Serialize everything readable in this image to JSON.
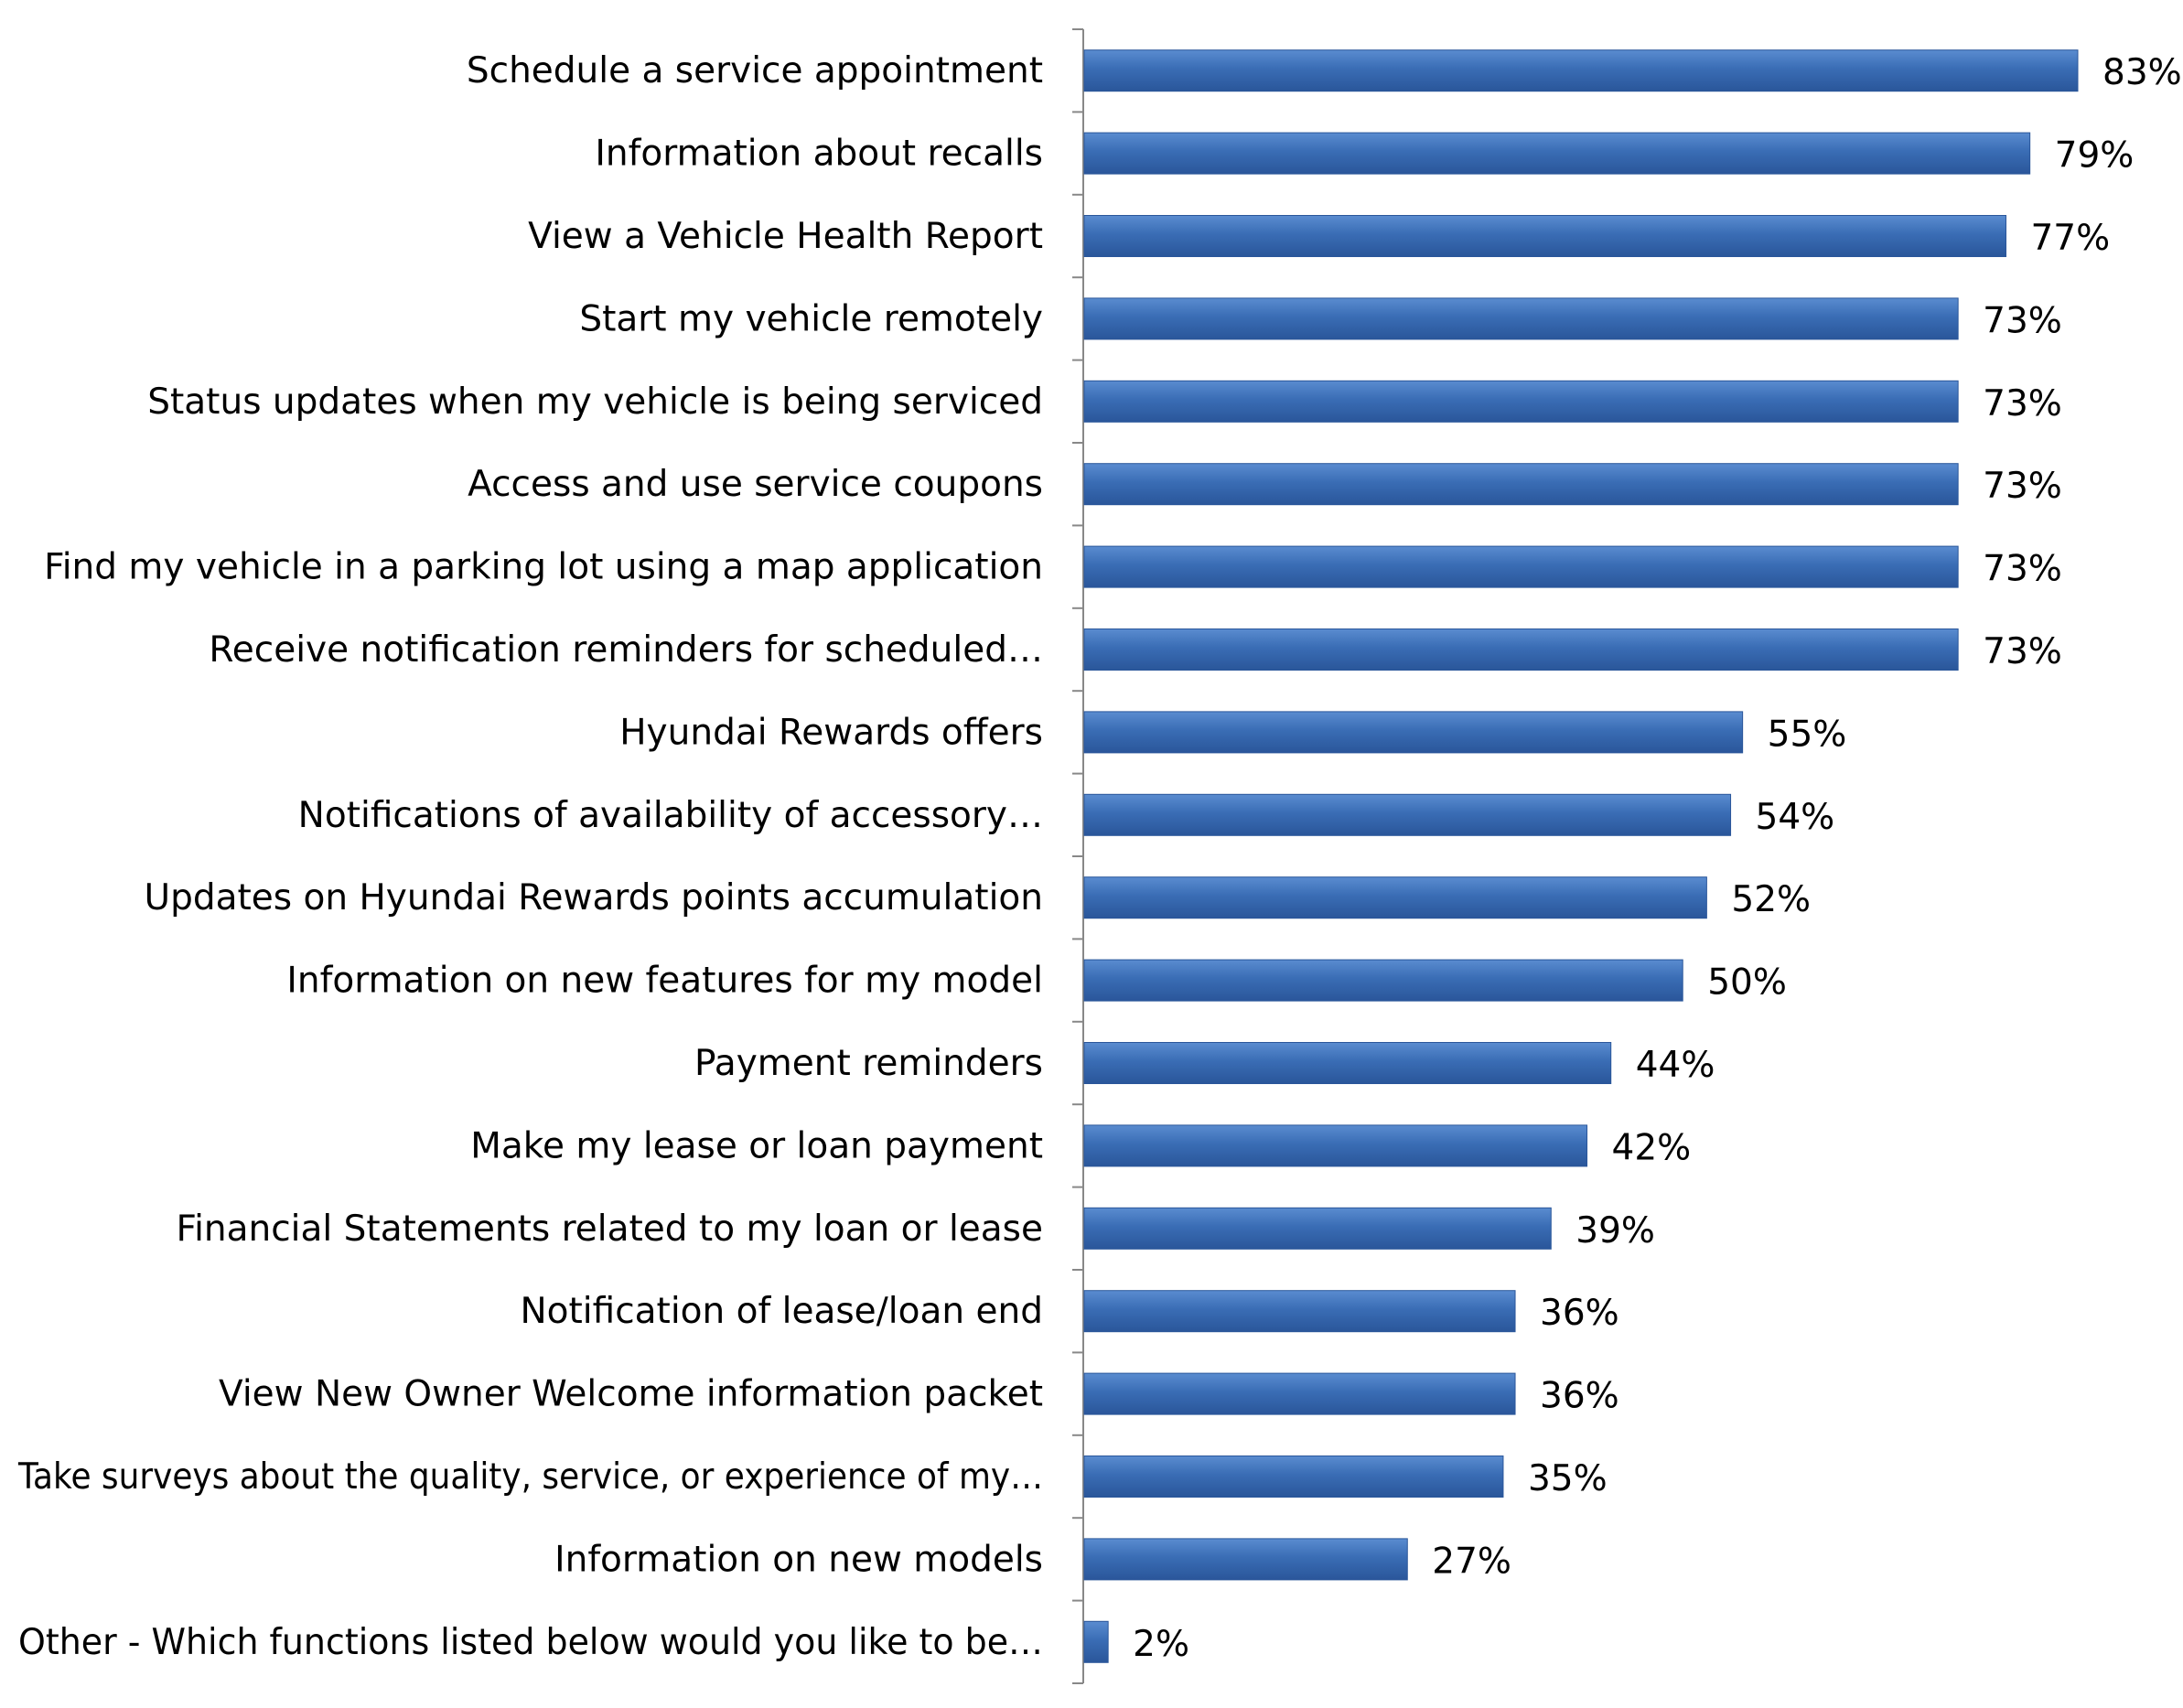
{
  "chart_data": {
    "type": "bar",
    "orientation": "horizontal",
    "categories": [
      "Schedule a service appointment",
      "Information about recalls",
      "View a Vehicle Health Report",
      "Start my vehicle remotely",
      "Status updates when my vehicle is being serviced",
      "Access and use service coupons",
      "Find my vehicle in a parking lot using a map application",
      "Receive notification reminders for scheduled…",
      "Hyundai Rewards offers",
      "Notifications of availability of accessory…",
      "Updates on Hyundai Rewards points accumulation",
      "Information on new features for my model",
      "Payment reminders",
      "Make my lease or loan payment",
      "Financial Statements related to my loan or lease",
      "Notification of lease/loan end",
      "View New Owner Welcome information packet",
      "Take surveys about the quality, service, or experience of my…",
      "Information on new models",
      "Other - Which functions listed below would you like to be…"
    ],
    "values": [
      83,
      79,
      77,
      73,
      73,
      73,
      73,
      73,
      55,
      54,
      52,
      50,
      44,
      42,
      39,
      36,
      36,
      35,
      27,
      2
    ],
    "data_labels": [
      "83%",
      "79%",
      "77%",
      "73%",
      "73%",
      "73%",
      "73%",
      "73%",
      "55%",
      "54%",
      "52%",
      "50%",
      "44%",
      "42%",
      "39%",
      "36%",
      "36%",
      "35%",
      "27%",
      "2%"
    ],
    "value_unit": "%",
    "xlim": [
      0,
      90
    ],
    "title": "",
    "xlabel": "",
    "ylabel": "",
    "grid": false,
    "legend": "none",
    "bar_color": "#3A6DB5",
    "bar_color_dark": "#2A569A",
    "bar_color_light": "#5A8CD0"
  }
}
